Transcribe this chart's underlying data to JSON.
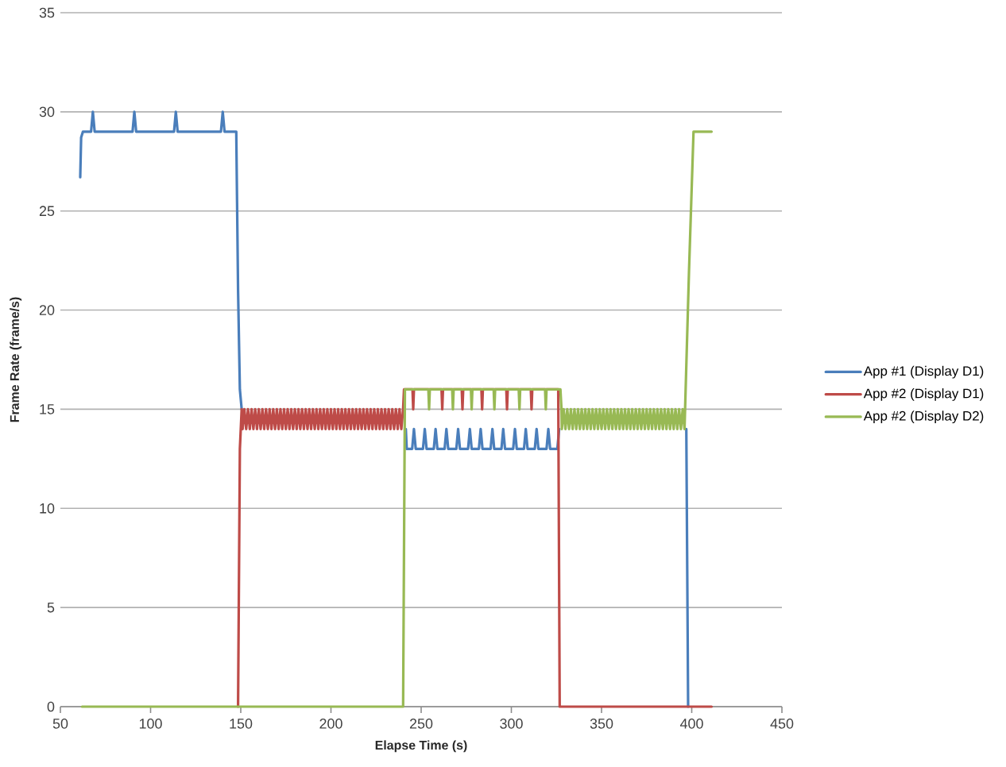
{
  "chart_data": {
    "type": "line",
    "xlabel": "Elapse Time (s)",
    "ylabel": "Frame Rate (frame/s)",
    "xlim": [
      50,
      450
    ],
    "xticks": [
      50,
      100,
      150,
      200,
      250,
      300,
      350,
      400,
      450
    ],
    "ylim": [
      0,
      35
    ],
    "yticks": [
      0,
      5,
      10,
      15,
      20,
      25,
      30,
      35
    ],
    "grid": "y",
    "legend": "right",
    "marker": "none",
    "line_style": "solid",
    "series": [
      {
        "name": "App #1 (Display D1)",
        "color": "#4a7ebb",
        "x": [
          61,
          61.5,
          62.5,
          67,
          68,
          69,
          90,
          91,
          92,
          113,
          114,
          115,
          139,
          140,
          141,
          147.5,
          148.5,
          149.5,
          150.5,
          195,
          241.5,
          242,
          245,
          246,
          247,
          251,
          252,
          253,
          257,
          258,
          259,
          263,
          264,
          265,
          269.5,
          270.5,
          271.5,
          276,
          277,
          278,
          282,
          283,
          284,
          288.5,
          289.5,
          290.5,
          294.5,
          295.5,
          296.5,
          301,
          302,
          303,
          307,
          308,
          309,
          313,
          314,
          315,
          319.5,
          320.5,
          321.5,
          325.5,
          326.5,
          360,
          397,
          398
        ],
        "values": [
          26.7,
          28.7,
          29,
          29,
          30,
          29,
          29,
          30,
          29,
          29,
          30,
          29,
          29,
          30,
          29,
          29,
          21,
          16,
          15,
          null,
          14,
          13,
          13,
          14,
          13,
          13,
          14,
          13,
          13,
          14,
          13,
          13,
          14,
          13,
          13,
          14,
          13,
          13,
          14,
          13,
          13,
          14,
          13,
          13,
          14,
          13,
          13,
          14,
          13,
          13,
          14,
          13,
          13,
          14,
          13,
          13,
          14,
          13,
          13,
          14,
          13,
          13,
          14,
          null,
          14,
          0
        ]
      },
      {
        "name": "App #2 (Display D1)",
        "color": "#be4b48",
        "x": [
          148.5,
          149.5,
          150.5,
          151,
          152,
          153,
          154,
          155,
          156,
          157,
          158,
          159,
          160,
          161,
          162,
          163,
          164,
          165,
          166,
          167,
          168,
          169,
          170,
          171,
          172,
          173,
          174,
          175,
          176,
          177,
          178,
          179,
          180,
          181,
          182,
          183,
          184,
          185,
          186,
          187,
          188,
          189,
          190,
          191,
          192,
          193,
          194,
          195,
          196,
          197,
          198,
          199,
          200,
          201,
          202,
          203,
          204,
          205,
          206,
          207,
          208,
          209,
          210,
          211,
          212,
          213,
          214,
          215,
          216,
          217,
          218,
          219,
          220,
          221,
          222,
          223,
          224,
          225,
          226,
          227,
          228,
          229,
          230,
          231,
          232,
          233,
          234,
          235,
          236,
          237,
          238,
          239,
          240,
          240.5,
          245.2,
          245.6,
          246,
          261.3,
          261.7,
          262.1,
          272.5,
          272.9,
          273.3,
          283.4,
          283.8,
          284.2,
          297.2,
          297.6,
          298,
          310.8,
          311.2,
          311.6,
          326,
          326.8,
          411
        ],
        "values": [
          0,
          13,
          15,
          14,
          15,
          14,
          15,
          14,
          15,
          14,
          15,
          14,
          15,
          14,
          15,
          14,
          15,
          14,
          15,
          14,
          15,
          14,
          15,
          14,
          15,
          14,
          15,
          14,
          15,
          14,
          15,
          14,
          15,
          14,
          15,
          14,
          15,
          14,
          15,
          14,
          15,
          14,
          15,
          14,
          15,
          14,
          15,
          14,
          15,
          14,
          15,
          14,
          15,
          14,
          15,
          14,
          15,
          14,
          15,
          14,
          15,
          14,
          15,
          14,
          15,
          14,
          15,
          14,
          15,
          14,
          15,
          14,
          15,
          14,
          15,
          14,
          15,
          14,
          15,
          14,
          15,
          14,
          15,
          14,
          15,
          14,
          15,
          14,
          15,
          14,
          15,
          14,
          15,
          16,
          16,
          15,
          16,
          16,
          15,
          16,
          16,
          15,
          16,
          16,
          15,
          16,
          16,
          15,
          16,
          16,
          15,
          16,
          16,
          0,
          0
        ]
      },
      {
        "name": "App #2 (Display D2)",
        "color": "#98b954",
        "x": [
          62,
          240,
          241,
          254,
          254.4,
          254.8,
          267.2,
          267.6,
          268,
          277.6,
          278,
          278.4,
          290.2,
          290.6,
          291,
          304.1,
          304.5,
          304.9,
          318.7,
          319.1,
          319.5,
          327.2,
          327.8,
          328,
          329,
          330,
          331,
          332,
          333,
          334,
          335,
          336,
          337,
          338,
          339,
          340,
          341,
          342,
          343,
          344,
          345,
          346,
          347,
          348,
          349,
          350,
          351,
          352,
          353,
          354,
          355,
          356,
          357,
          358,
          359,
          360,
          361,
          362,
          363,
          364,
          365,
          366,
          367,
          368,
          369,
          370,
          371,
          372,
          373,
          374,
          375,
          376,
          377,
          378,
          379,
          380,
          381,
          382,
          383,
          384,
          385,
          386,
          387,
          388,
          389,
          390,
          391,
          392,
          393,
          394,
          395,
          396,
          398.5,
          401,
          411
        ],
        "values": [
          0,
          0,
          16,
          16,
          15,
          16,
          16,
          15,
          16,
          16,
          15,
          16,
          16,
          15,
          16,
          16,
          15,
          16,
          16,
          15,
          16,
          16,
          15,
          14,
          15,
          14,
          15,
          14,
          15,
          14,
          15,
          14,
          15,
          14,
          15,
          14,
          15,
          14,
          15,
          14,
          15,
          14,
          15,
          14,
          15,
          14,
          15,
          14,
          15,
          14,
          15,
          14,
          15,
          14,
          15,
          14,
          15,
          14,
          15,
          14,
          15,
          14,
          15,
          14,
          15,
          14,
          15,
          14,
          15,
          14,
          15,
          14,
          15,
          14,
          15,
          14,
          15,
          14,
          15,
          14,
          15,
          14,
          15,
          14,
          15,
          14,
          15,
          14,
          15,
          14,
          15,
          14,
          22,
          29,
          29
        ]
      }
    ]
  }
}
